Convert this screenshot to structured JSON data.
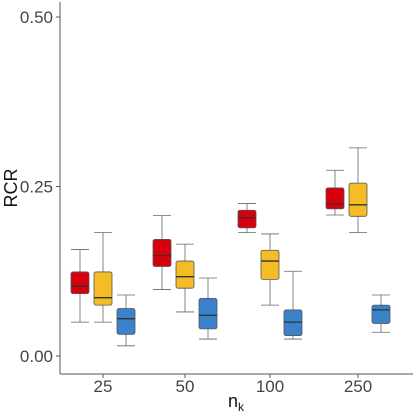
{
  "chart_data": {
    "type": "box",
    "ylabel": "RCR",
    "xlabel": {
      "base": "n",
      "sub": "k"
    },
    "ylim": [
      0,
      0.52
    ],
    "yticks": [
      {
        "value": 0.0,
        "label": "0.00"
      },
      {
        "value": 0.25,
        "label": "0.25"
      },
      {
        "value": 0.5,
        "label": "0.50"
      }
    ],
    "grid": false,
    "categories": [
      "25",
      "50",
      "100",
      "250"
    ],
    "series": [
      {
        "color": "#d7000f",
        "stats": [
          {
            "min": 0.05,
            "q1": 0.092,
            "median": 0.103,
            "q3": 0.124,
            "max": 0.157
          },
          {
            "min": 0.098,
            "q1": 0.132,
            "median": 0.148,
            "q3": 0.172,
            "max": 0.207
          },
          {
            "min": 0.182,
            "q1": 0.189,
            "median": 0.204,
            "q3": 0.215,
            "max": 0.225
          },
          {
            "min": 0.208,
            "q1": 0.217,
            "median": 0.224,
            "q3": 0.248,
            "max": 0.274
          }
        ]
      },
      {
        "color": "#f5bc26",
        "stats": [
          {
            "min": 0.05,
            "q1": 0.075,
            "median": 0.086,
            "q3": 0.124,
            "max": 0.182
          },
          {
            "min": 0.065,
            "q1": 0.1,
            "median": 0.117,
            "q3": 0.14,
            "max": 0.165
          },
          {
            "min": 0.075,
            "q1": 0.113,
            "median": 0.14,
            "q3": 0.156,
            "max": 0.18
          },
          {
            "min": 0.182,
            "q1": 0.206,
            "median": 0.223,
            "q3": 0.255,
            "max": 0.307
          }
        ]
      },
      {
        "color": "#3a83cb",
        "stats": [
          {
            "min": 0.015,
            "q1": 0.032,
            "median": 0.055,
            "q3": 0.07,
            "max": 0.09
          },
          {
            "min": 0.025,
            "q1": 0.04,
            "median": 0.06,
            "q3": 0.085,
            "max": 0.115
          },
          {
            "min": 0.025,
            "q1": 0.03,
            "median": 0.05,
            "q3": 0.068,
            "max": 0.125
          },
          {
            "min": 0.035,
            "q1": 0.048,
            "median": 0.068,
            "q3": 0.075,
            "max": 0.09
          }
        ]
      }
    ]
  }
}
